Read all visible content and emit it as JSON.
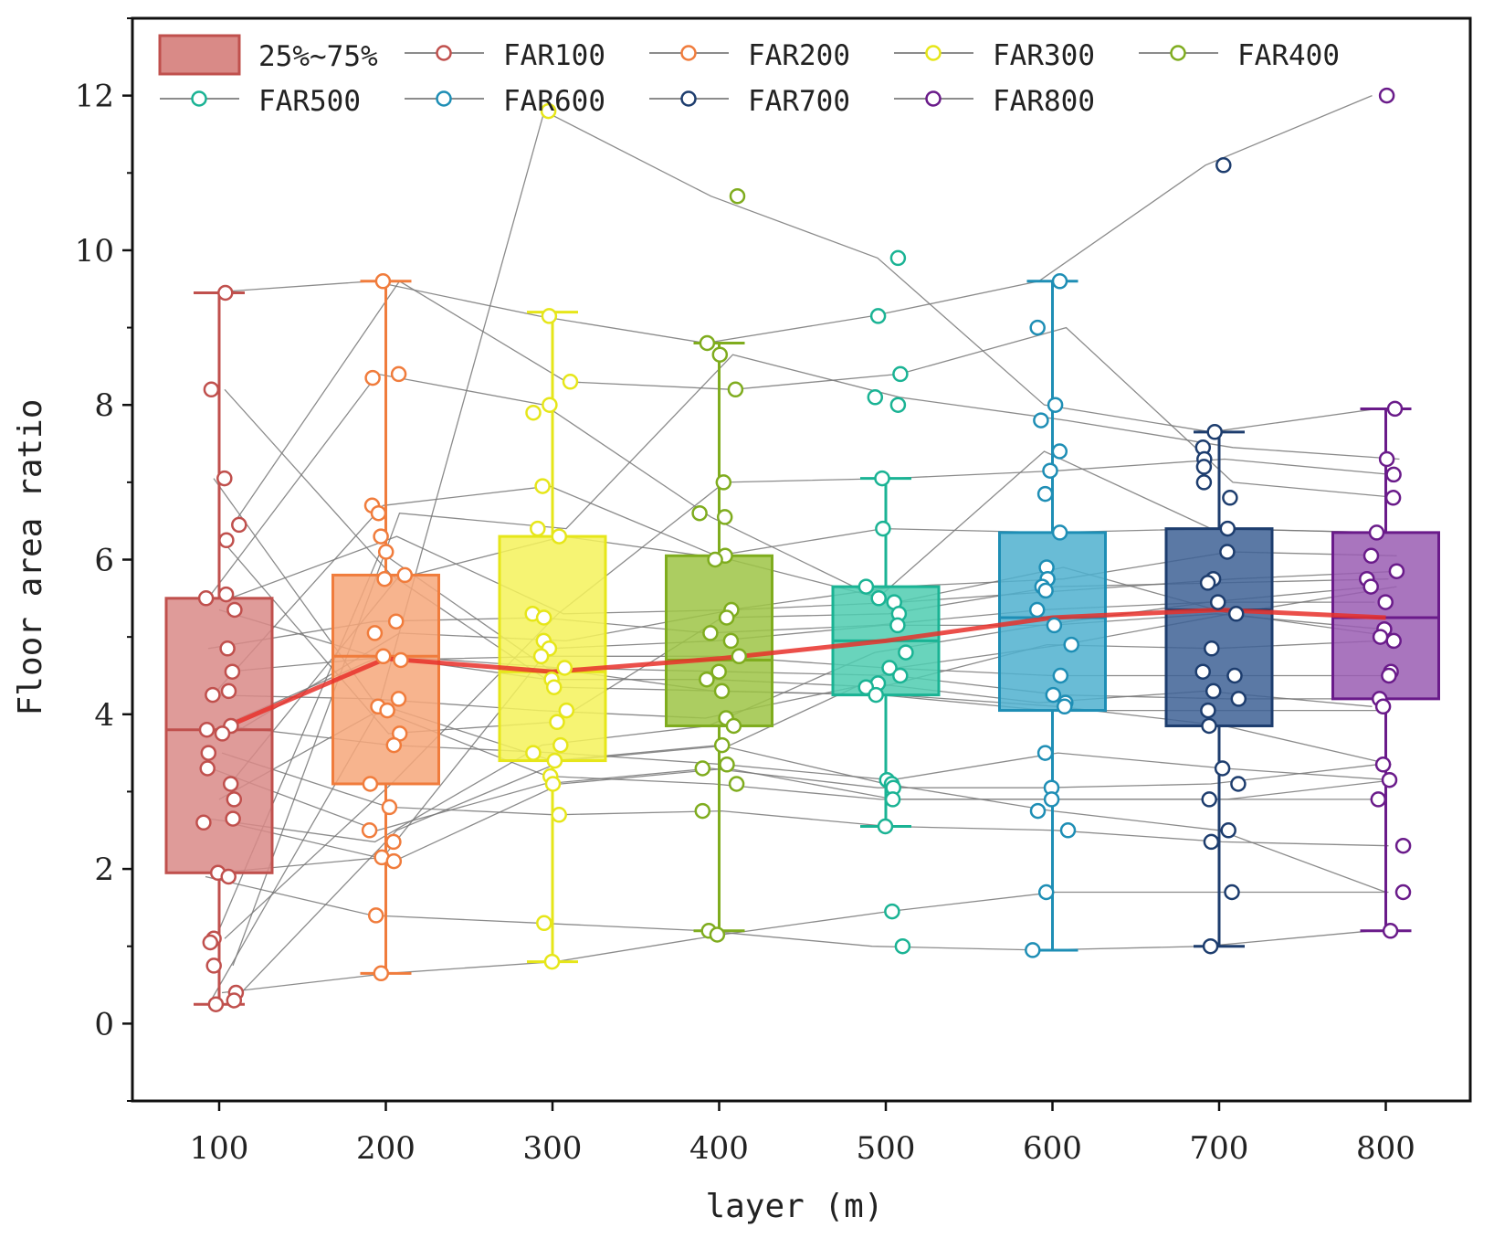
{
  "chart_data": {
    "type": "box",
    "title": "",
    "xlabel": "layer (m)",
    "ylabel": "Floor area ratio",
    "ylim": [
      -1,
      13
    ],
    "yticks": [
      0,
      2,
      4,
      6,
      8,
      10,
      12
    ],
    "categories": [
      "100",
      "200",
      "300",
      "400",
      "500",
      "600",
      "700",
      "800"
    ],
    "legend": {
      "position": "top",
      "box_label": "25%~75%",
      "series_labels": [
        "FAR100",
        "FAR200",
        "FAR300",
        "FAR400",
        "FAR500",
        "FAR600",
        "FAR700",
        "FAR800"
      ]
    },
    "colors": {
      "stroke": [
        "#c0504d",
        "#f07c3c",
        "#e6e619",
        "#7fac1e",
        "#1ab394",
        "#1e8eb5",
        "#1d3d6e",
        "#6a1b8a"
      ],
      "fill": [
        "#d98a87",
        "#f6a77a",
        "#f4f25a",
        "#9ec445",
        "#4fcdb0",
        "#4fb0cf",
        "#3e6295",
        "#9a5db3"
      ],
      "mean_line": "#e8302a",
      "connector": "#777777"
    },
    "boxes": [
      {
        "min": 0.25,
        "q1": 1.95,
        "median": 3.8,
        "q3": 5.5,
        "max": 9.45,
        "mean": 3.8
      },
      {
        "min": 0.65,
        "q1": 3.1,
        "median": 4.75,
        "q3": 5.8,
        "max": 9.6,
        "mean": 4.72
      },
      {
        "min": 0.8,
        "q1": 3.4,
        "median": 4.55,
        "q3": 6.3,
        "max": 9.2,
        "mean": 4.55
      },
      {
        "min": 1.2,
        "q1": 3.85,
        "median": 4.7,
        "q3": 6.05,
        "max": 8.8,
        "mean": 4.72
      },
      {
        "min": 2.55,
        "q1": 4.25,
        "median": 4.95,
        "q3": 5.65,
        "max": 7.05,
        "mean": 4.95
      },
      {
        "min": 0.95,
        "q1": 4.05,
        "median": 5.25,
        "q3": 6.35,
        "max": 9.6,
        "mean": 5.25
      },
      {
        "min": 1.0,
        "q1": 3.85,
        "median": 5.35,
        "q3": 6.4,
        "max": 7.65,
        "mean": 5.35
      },
      {
        "min": 1.2,
        "q1": 4.2,
        "median": 5.25,
        "q3": 6.35,
        "max": 7.95,
        "mean": 5.25
      }
    ],
    "points": [
      [
        9.45,
        8.2,
        7.05,
        6.45,
        6.25,
        5.55,
        5.5,
        5.35,
        4.85,
        4.55,
        4.3,
        4.25,
        3.85,
        3.8,
        3.75,
        3.5,
        3.3,
        3.1,
        2.9,
        2.65,
        2.6,
        1.95,
        1.9,
        1.1,
        1.05,
        0.75,
        0.4,
        0.3,
        0.25
      ],
      [
        9.6,
        8.4,
        8.35,
        6.7,
        6.6,
        6.3,
        6.1,
        5.8,
        5.75,
        5.2,
        5.05,
        4.75,
        4.7,
        4.2,
        4.1,
        4.05,
        3.75,
        3.6,
        3.1,
        2.8,
        2.5,
        2.35,
        2.15,
        2.1,
        1.4,
        0.65
      ],
      [
        11.8,
        9.15,
        8.3,
        8.0,
        7.9,
        6.95,
        6.4,
        6.3,
        5.3,
        5.25,
        4.95,
        4.85,
        4.75,
        4.6,
        4.45,
        4.35,
        4.05,
        3.9,
        3.6,
        3.5,
        3.4,
        3.2,
        3.1,
        2.7,
        1.3,
        0.8
      ],
      [
        10.7,
        8.8,
        8.65,
        8.2,
        7.0,
        6.6,
        6.55,
        6.05,
        6.0,
        5.35,
        5.25,
        5.05,
        4.95,
        4.75,
        4.55,
        4.45,
        4.3,
        3.95,
        3.85,
        3.6,
        3.35,
        3.3,
        3.1,
        2.75,
        1.2,
        1.15
      ],
      [
        9.9,
        9.15,
        8.4,
        8.1,
        8.0,
        7.05,
        6.4,
        5.65,
        5.5,
        5.45,
        5.3,
        5.15,
        4.8,
        4.6,
        4.5,
        4.4,
        4.35,
        4.25,
        3.15,
        3.1,
        3.05,
        2.9,
        2.55,
        1.45,
        1.0
      ],
      [
        9.6,
        9.0,
        8.0,
        7.8,
        7.4,
        7.15,
        6.85,
        6.35,
        5.9,
        5.75,
        5.65,
        5.6,
        5.35,
        5.15,
        4.9,
        4.5,
        4.25,
        4.15,
        4.1,
        3.5,
        3.05,
        2.9,
        2.75,
        2.5,
        1.7,
        0.95
      ],
      [
        11.1,
        7.65,
        7.45,
        7.3,
        7.2,
        7.0,
        6.8,
        6.4,
        6.1,
        5.75,
        5.7,
        5.45,
        5.3,
        4.85,
        4.55,
        4.5,
        4.3,
        4.2,
        4.05,
        3.85,
        3.3,
        3.1,
        2.9,
        2.5,
        2.35,
        1.7,
        1.0
      ],
      [
        12.0,
        7.95,
        7.3,
        7.1,
        6.8,
        6.35,
        6.05,
        5.85,
        5.75,
        5.65,
        5.45,
        5.1,
        5.0,
        4.95,
        4.55,
        4.5,
        4.2,
        4.1,
        3.35,
        3.15,
        2.9,
        2.3,
        1.7,
        1.2
      ]
    ],
    "connections": [
      [
        9.45,
        9.6,
        9.15,
        8.8,
        9.15,
        9.6,
        11.1,
        12.0
      ],
      [
        8.2,
        5.8,
        4.35,
        4.3,
        4.25,
        4.1,
        3.85,
        3.35
      ],
      [
        7.05,
        4.05,
        3.2,
        3.1,
        2.9,
        2.9,
        2.9,
        2.9
      ],
      [
        6.45,
        9.6,
        8.3,
        8.2,
        8.4,
        9.0,
        7.0,
        6.8
      ],
      [
        6.25,
        3.75,
        3.9,
        5.25,
        5.3,
        5.65,
        5.7,
        5.75
      ],
      [
        5.55,
        8.4,
        8.0,
        6.55,
        5.5,
        7.4,
        6.4,
        6.35
      ],
      [
        5.5,
        6.3,
        5.3,
        5.35,
        5.65,
        5.75,
        6.1,
        6.05
      ],
      [
        5.35,
        4.7,
        4.75,
        4.75,
        4.6,
        4.5,
        4.5,
        4.5
      ],
      [
        4.85,
        5.2,
        5.25,
        5.05,
        5.15,
        5.35,
        5.45,
        5.45
      ],
      [
        4.55,
        4.75,
        4.6,
        4.55,
        4.5,
        4.25,
        4.2,
        4.2
      ],
      [
        4.3,
        6.7,
        6.95,
        6.05,
        6.4,
        6.35,
        6.4,
        6.35
      ],
      [
        4.25,
        4.2,
        4.05,
        3.95,
        4.4,
        4.15,
        4.3,
        4.1
      ],
      [
        3.85,
        3.6,
        3.5,
        3.35,
        3.15,
        3.5,
        3.3,
        3.15
      ],
      [
        3.8,
        4.75,
        4.45,
        4.45,
        4.35,
        4.9,
        4.85,
        4.95
      ],
      [
        3.75,
        5.05,
        4.95,
        5.35,
        5.45,
        5.6,
        5.75,
        5.85
      ],
      [
        3.5,
        2.8,
        2.7,
        2.75,
        2.55,
        2.5,
        2.35,
        2.3
      ],
      [
        3.3,
        2.5,
        3.1,
        3.3,
        3.05,
        3.05,
        3.1,
        3.35
      ],
      [
        3.1,
        5.75,
        6.3,
        6.0,
        5.45,
        5.9,
        5.3,
        5.65
      ],
      [
        2.9,
        4.1,
        3.4,
        3.6,
        3.1,
        2.75,
        2.5,
        1.7
      ],
      [
        2.65,
        2.35,
        3.6,
        3.85,
        4.8,
        5.15,
        5.45,
        5.65
      ],
      [
        2.6,
        2.1,
        3.1,
        3.3,
        2.9,
        2.9,
        2.9,
        3.15
      ],
      [
        1.95,
        2.15,
        4.85,
        4.95,
        5.15,
        5.15,
        5.3,
        5.1
      ],
      [
        1.9,
        1.4,
        1.3,
        1.2,
        1.0,
        0.95,
        1.0,
        1.2
      ],
      [
        1.1,
        3.1,
        5.3,
        7.0,
        7.05,
        7.15,
        7.3,
        7.1
      ],
      [
        1.05,
        6.1,
        4.6,
        4.3,
        4.25,
        4.05,
        4.05,
        4.05
      ],
      [
        0.75,
        6.6,
        6.4,
        8.65,
        8.1,
        7.8,
        7.45,
        7.3
      ],
      [
        0.4,
        0.65,
        0.8,
        1.15,
        1.45,
        1.7,
        1.7,
        1.7
      ],
      [
        0.3,
        4.05,
        11.8,
        10.7,
        9.9,
        8.0,
        7.65,
        7.95
      ],
      [
        0.25,
        2.5,
        3.4,
        3.6,
        4.6,
        4.9,
        5.3,
        5.0
      ]
    ]
  }
}
